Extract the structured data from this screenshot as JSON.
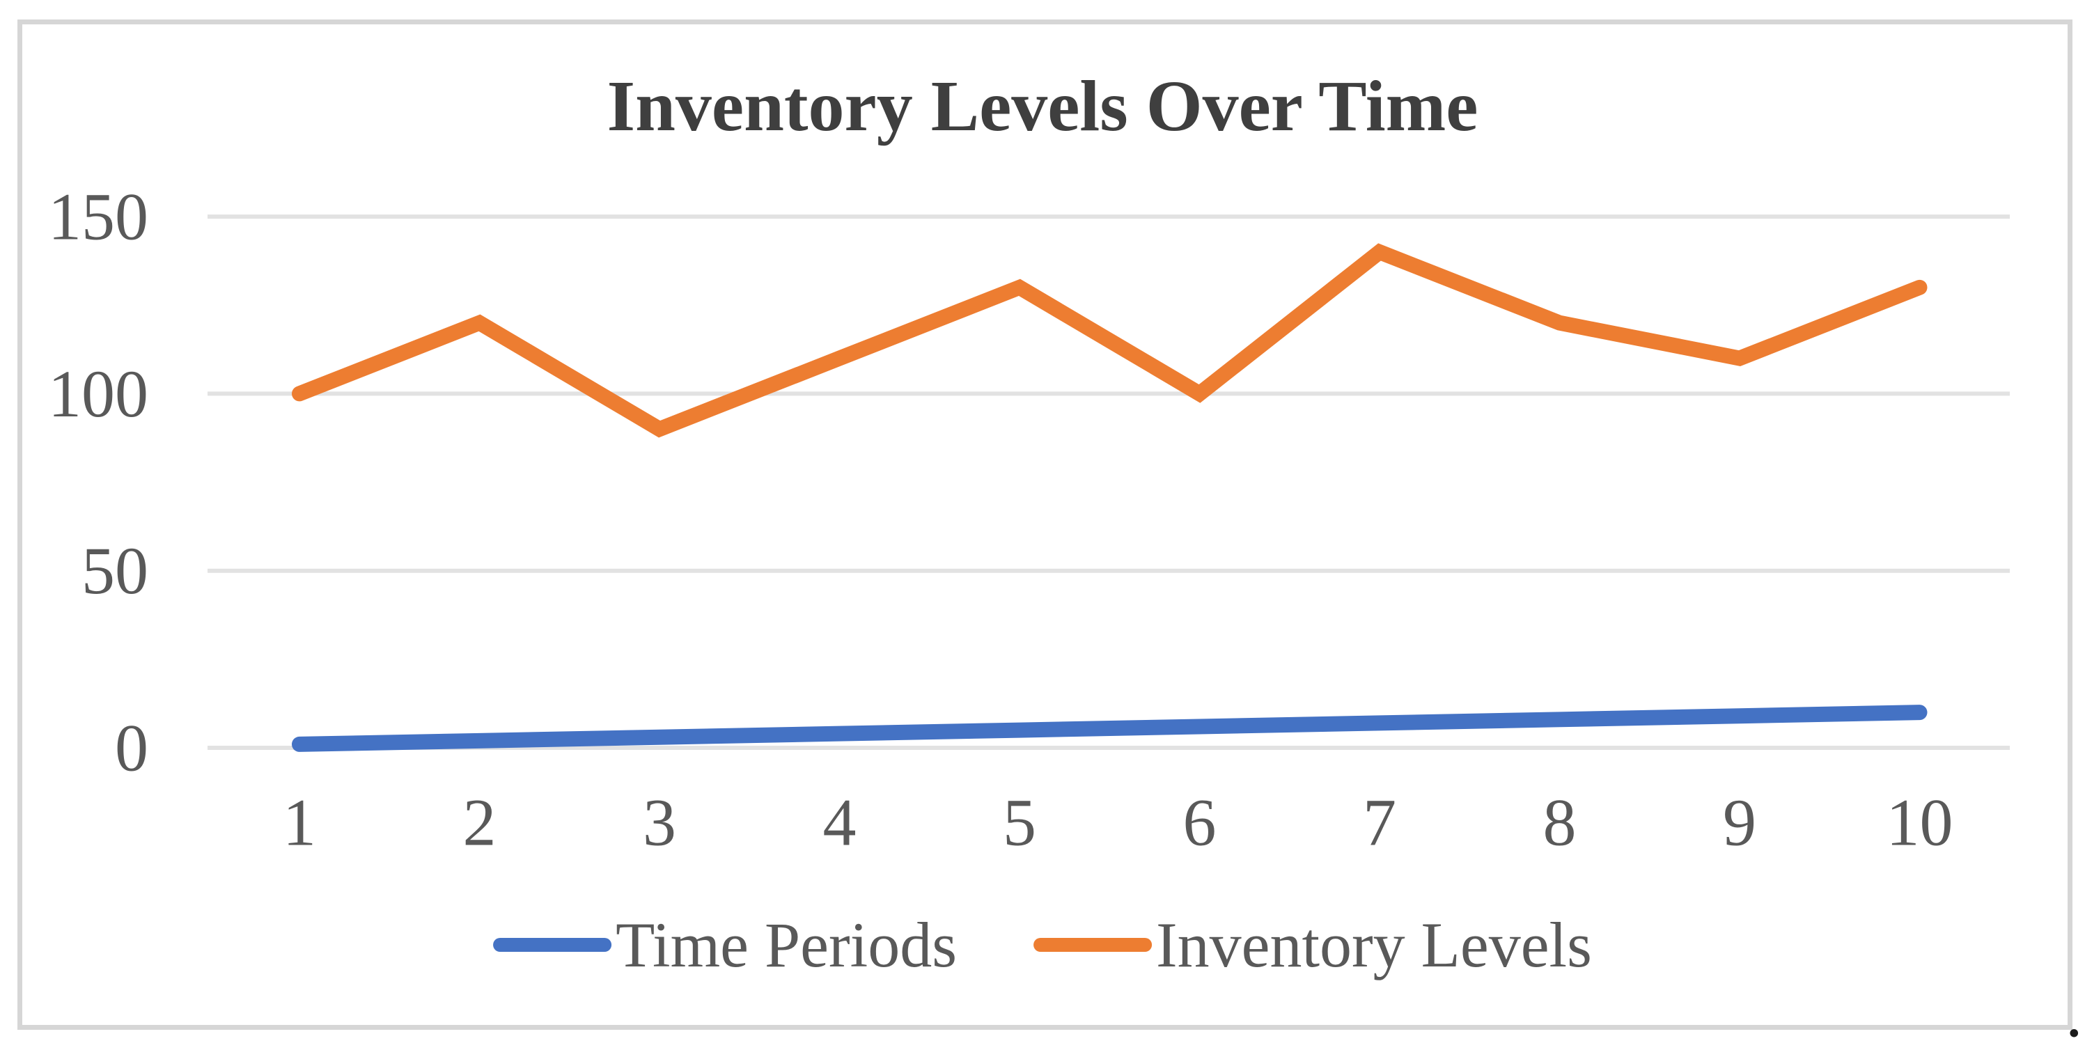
{
  "page": {
    "background": "#ffffff",
    "trailing_period": "."
  },
  "chart": {
    "frame_border_color": "#d6d6d6",
    "gridline_color": "#e2e2e2",
    "title_color": "#3f3f3f",
    "axis_label_color": "#595959"
  },
  "chart_data": {
    "type": "line",
    "title": "Inventory Levels Over Time",
    "x": [
      1,
      2,
      3,
      4,
      5,
      6,
      7,
      8,
      9,
      10
    ],
    "series": [
      {
        "name": "Time Periods",
        "color": "#4472c4",
        "values": [
          1,
          2,
          3,
          4,
          5,
          6,
          7,
          8,
          9,
          10
        ]
      },
      {
        "name": "Inventory Levels",
        "color": "#ed7d31",
        "values": [
          100,
          120,
          90,
          110,
          130,
          100,
          140,
          120,
          110,
          130
        ]
      }
    ],
    "xlabel": "",
    "ylabel": "",
    "ylim": [
      0,
      150
    ],
    "yticks": [
      0,
      50,
      100,
      150
    ],
    "grid": true,
    "legend_position": "bottom"
  }
}
